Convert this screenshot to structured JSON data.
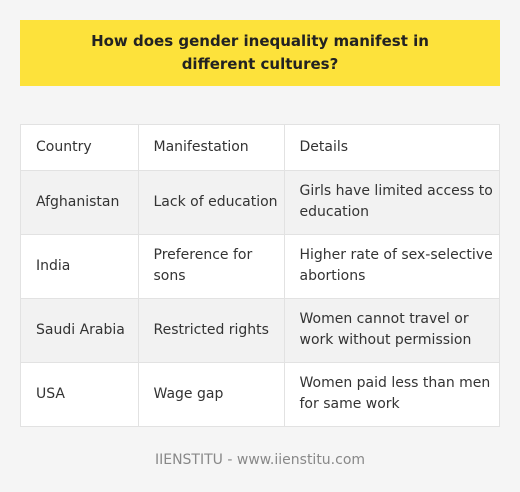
{
  "title": "How does gender inequality manifest in different cultures?",
  "table": {
    "headers": [
      "Country",
      "Manifestation",
      "Details"
    ],
    "rows": [
      [
        "Afghanistan",
        "Lack of education",
        "Girls have limited access to education"
      ],
      [
        "India",
        "Preference for sons",
        "Higher rate of sex-selective abortions"
      ],
      [
        "Saudi Arabia",
        "Restricted rights",
        "Women cannot travel or work without permission"
      ],
      [
        "USA",
        "Wage gap",
        "Women paid less than men for same work"
      ]
    ]
  },
  "footer": "IIENSTITU - www.iienstitu.com",
  "colors": {
    "banner": "#fde23b",
    "background": "#f5f5f5",
    "row_stripe": "#f2f2f2",
    "border": "#e2e2e2"
  }
}
